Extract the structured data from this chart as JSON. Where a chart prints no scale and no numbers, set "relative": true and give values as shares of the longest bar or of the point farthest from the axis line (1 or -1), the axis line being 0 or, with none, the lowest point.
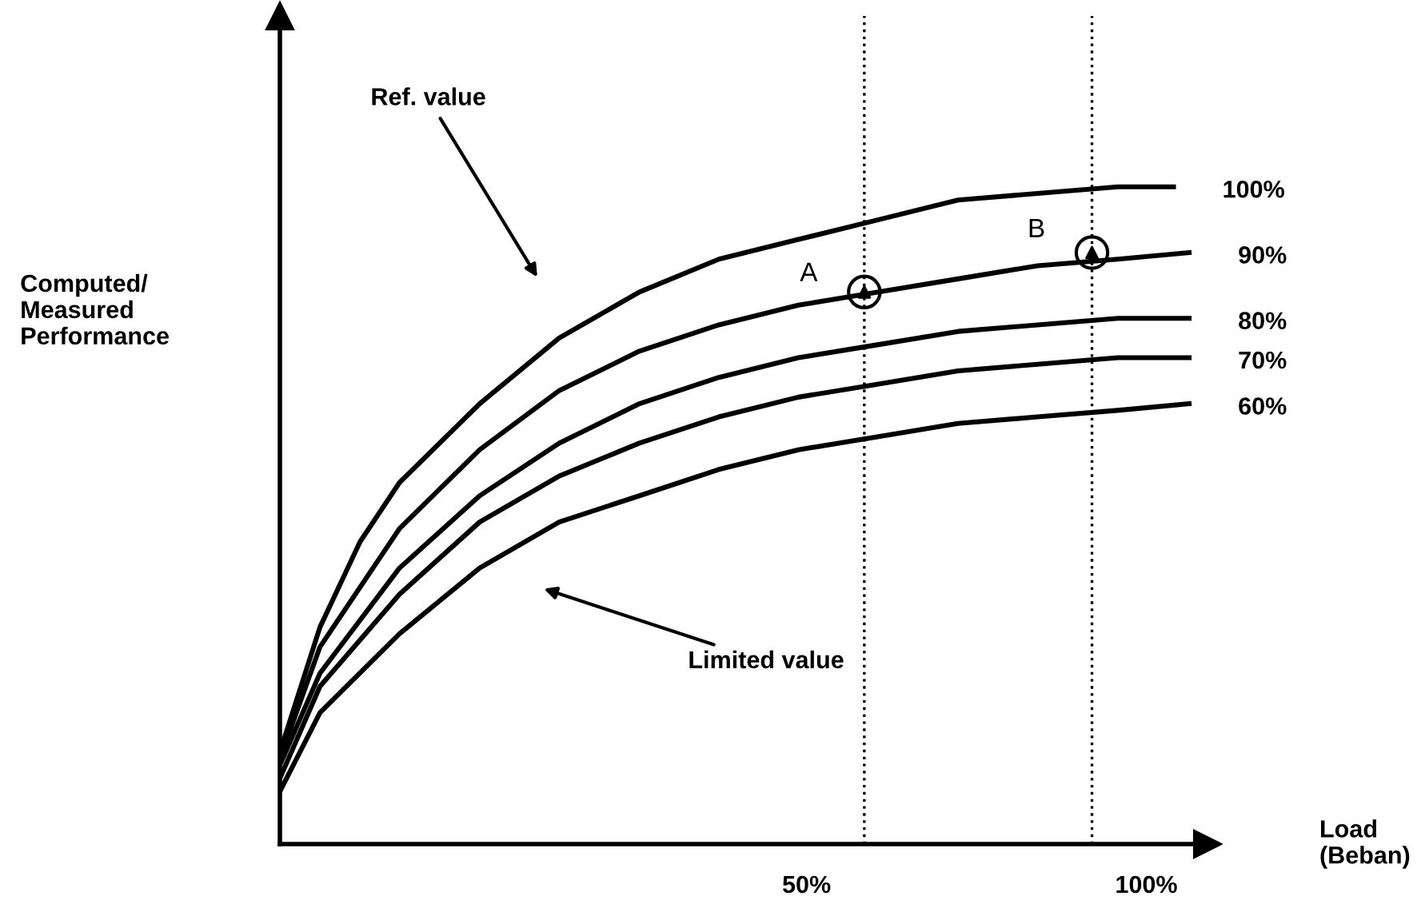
{
  "chart_data": {
    "type": "line",
    "relative": true,
    "xlabel": "Load\n(Beban)",
    "ylabel": "Computed/\nMeasured\nPerformance",
    "xlim": [
      -27.5,
      109
    ],
    "xticks": [
      {
        "value": 50,
        "label": "50%"
      },
      {
        "value": 100,
        "label": "100%"
      }
    ],
    "line_style": "solid",
    "marker": "none",
    "grid": false,
    "series": [
      {
        "name": "100%",
        "color": "#000000",
        "x": [
          -27.5,
          -21.6,
          -15.7,
          -9.9,
          1.9,
          13.6,
          25.4,
          37.1,
          48.8,
          60.6,
          72.3,
          84.0,
          95.8,
          104.0
        ],
        "values": [
          0.14,
          0.33,
          0.46,
          0.55,
          0.67,
          0.77,
          0.84,
          0.89,
          0.92,
          0.95,
          0.98,
          0.99,
          1.0,
          1.0
        ]
      },
      {
        "name": "90%",
        "color": "#000000",
        "x": [
          -27.5,
          -21.6,
          -9.9,
          1.9,
          13.6,
          25.4,
          37.1,
          48.8,
          60.6,
          72.3,
          84.0,
          95.8,
          106.3
        ],
        "values": [
          0.13,
          0.3,
          0.48,
          0.6,
          0.69,
          0.75,
          0.79,
          0.82,
          0.84,
          0.86,
          0.88,
          0.89,
          0.9
        ]
      },
      {
        "name": "80%",
        "color": "#000000",
        "x": [
          -27.5,
          -21.6,
          -9.9,
          1.9,
          13.6,
          25.4,
          37.1,
          48.8,
          60.6,
          72.3,
          84.0,
          95.8,
          106.3
        ],
        "values": [
          0.12,
          0.26,
          0.42,
          0.53,
          0.61,
          0.67,
          0.71,
          0.74,
          0.76,
          0.78,
          0.79,
          0.8,
          0.8
        ]
      },
      {
        "name": "70%",
        "color": "#000000",
        "x": [
          -27.5,
          -21.6,
          -9.9,
          1.9,
          13.6,
          25.4,
          37.1,
          48.8,
          60.6,
          72.3,
          84.0,
          95.8,
          106.3
        ],
        "values": [
          0.1,
          0.24,
          0.38,
          0.49,
          0.56,
          0.61,
          0.65,
          0.68,
          0.7,
          0.72,
          0.73,
          0.74,
          0.74
        ]
      },
      {
        "name": "60%",
        "color": "#000000",
        "x": [
          -27.5,
          -21.6,
          -9.9,
          1.9,
          13.6,
          25.4,
          37.1,
          48.8,
          60.6,
          72.3,
          84.0,
          95.8,
          106.3
        ],
        "values": [
          0.08,
          0.2,
          0.32,
          0.42,
          0.49,
          0.53,
          0.57,
          0.6,
          0.62,
          0.64,
          0.65,
          0.66,
          0.67
        ]
      },
      {
        "type": "scatter",
        "marker": "circle",
        "color": "#000000",
        "x": [
          58.5,
          92
        ],
        "values": [
          0.84,
          0.9
        ]
      }
    ],
    "ref_lines": [
      {
        "axis": "x",
        "value": 58.5,
        "line_style": "dotted",
        "color": "#000000"
      },
      {
        "axis": "x",
        "value": 92,
        "line_style": "dotted",
        "color": "#000000"
      }
    ],
    "annotations": [
      {
        "text": "A",
        "x": 58.5,
        "y": 0.84
      },
      {
        "text": "B",
        "x": 92,
        "y": 0.9
      },
      "Ref. value",
      "Limited value"
    ]
  }
}
